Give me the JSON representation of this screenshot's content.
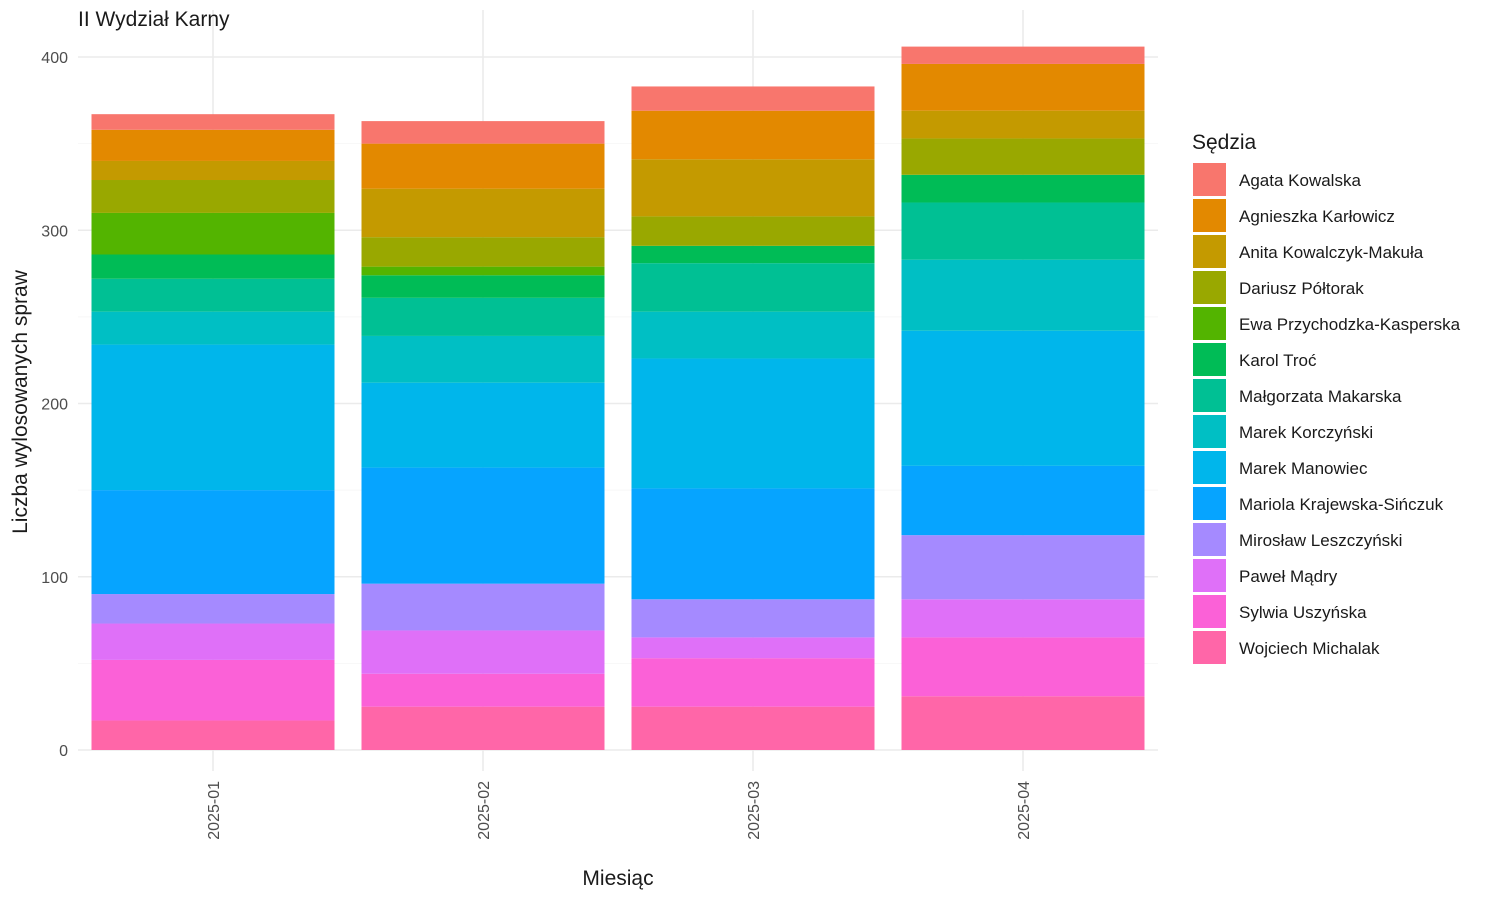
{
  "chart_data": {
    "type": "bar",
    "stacked": true,
    "title": "II Wydział Karny",
    "xlabel": "Miesiąc",
    "ylabel": "Liczba wylosowanych spraw",
    "legend_title": "Sędzia",
    "legend_position": "right",
    "grid": true,
    "ylim": [
      0,
      406
    ],
    "yticks": [
      0,
      100,
      200,
      300,
      400
    ],
    "categories": [
      "2025-01",
      "2025-02",
      "2025-03",
      "2025-04"
    ],
    "series": [
      {
        "name": "Agata Kowalska",
        "color": "#F8766D",
        "values": [
          9,
          13,
          14,
          10
        ]
      },
      {
        "name": "Agnieszka Karłowicz",
        "color": "#E38900",
        "values": [
          18,
          26,
          28,
          27
        ]
      },
      {
        "name": "Anita Kowalczyk-Makuła",
        "color": "#C49A00",
        "values": [
          11,
          28,
          33,
          16
        ]
      },
      {
        "name": "Dariusz Półtorak",
        "color": "#99A800",
        "values": [
          19,
          17,
          17,
          21
        ]
      },
      {
        "name": "Ewa Przychodzka-Kasperska",
        "color": "#53B400",
        "values": [
          24,
          5,
          0,
          0
        ]
      },
      {
        "name": "Karol Troć",
        "color": "#00BC56",
        "values": [
          14,
          13,
          10,
          16
        ]
      },
      {
        "name": "Małgorzata Makarska",
        "color": "#00C094",
        "values": [
          19,
          22,
          28,
          33
        ]
      },
      {
        "name": "Marek Korczyński",
        "color": "#00BFC4",
        "values": [
          19,
          27,
          27,
          41
        ]
      },
      {
        "name": "Marek Manowiec",
        "color": "#00B6EB",
        "values": [
          84,
          49,
          75,
          78
        ]
      },
      {
        "name": "Mariola Krajewska-Sińczuk",
        "color": "#06A4FF",
        "values": [
          60,
          67,
          64,
          40
        ]
      },
      {
        "name": "Mirosław Leszczyński",
        "color": "#A58AFF",
        "values": [
          17,
          27,
          22,
          37
        ]
      },
      {
        "name": "Paweł Mądry",
        "color": "#DF70F8",
        "values": [
          21,
          25,
          12,
          22
        ]
      },
      {
        "name": "Sylwia Uszyńska",
        "color": "#FB61D7",
        "values": [
          35,
          19,
          28,
          34
        ]
      },
      {
        "name": "Wojciech Michalak",
        "color": "#FF66A8",
        "values": [
          17,
          25,
          25,
          31
        ]
      }
    ]
  }
}
